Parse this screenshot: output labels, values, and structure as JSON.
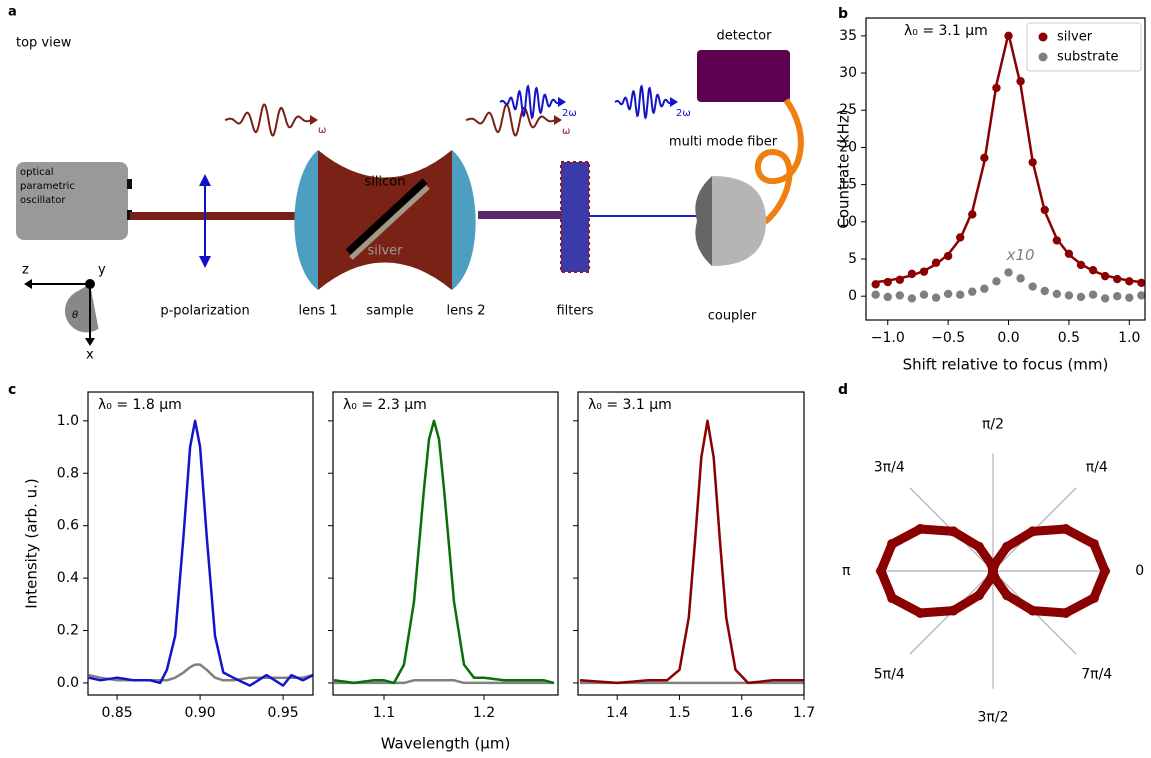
{
  "diagram": {
    "panel": "a",
    "view": "top view",
    "detector": "detector",
    "fiber": "multi mode fiber",
    "opo": [
      "optical",
      "parametric",
      "oscillator"
    ],
    "silicon": "silicon",
    "silver": "silver",
    "polarization": "p-polarization",
    "lens1": "lens 1",
    "sample": "sample",
    "lens2": "lens 2",
    "filters": "filters",
    "coupler": "coupler",
    "axes": {
      "z": "z",
      "y": "y",
      "x": "x",
      "theta": "θ"
    },
    "omega": "ω",
    "two_omega": "2ω"
  },
  "chart_data": [
    {
      "type": "scatter",
      "panel": "b",
      "annotation": "λ₀ = 3.1 μm",
      "scale_label": "x10",
      "xlabel": "Shift relative to focus (mm)",
      "ylabel": "Countrate (kHz)",
      "x": [
        -1.1,
        -1.0,
        -0.9,
        -0.8,
        -0.7,
        -0.6,
        -0.5,
        -0.4,
        -0.3,
        -0.2,
        -0.1,
        0,
        0.1,
        0.2,
        0.3,
        0.4,
        0.5,
        0.6,
        0.7,
        0.8,
        0.9,
        1.0,
        1.1
      ],
      "series": [
        {
          "name": "silver",
          "color": "#8b0000",
          "values": [
            1.6,
            1.9,
            2.2,
            3.0,
            3.3,
            4.5,
            5.4,
            7.9,
            11.0,
            18.6,
            28.0,
            35.0,
            28.9,
            18.0,
            11.6,
            7.5,
            5.7,
            4.2,
            3.5,
            2.7,
            2.3,
            2.0,
            1.8
          ],
          "fit": [
            1.9,
            2.1,
            2.4,
            2.8,
            3.4,
            4.3,
            5.6,
            7.7,
            11.4,
            18.1,
            28.4,
            35.3,
            28.4,
            18.1,
            11.4,
            7.7,
            5.6,
            4.3,
            3.4,
            2.8,
            2.4,
            2.1,
            1.9
          ]
        },
        {
          "name": "substrate",
          "color": "#7f7f7f",
          "values": [
            0.2,
            -0.1,
            0.1,
            -0.3,
            0.2,
            -0.2,
            0.3,
            0.2,
            0.6,
            1.0,
            2.0,
            3.2,
            2.4,
            1.3,
            0.7,
            0.3,
            0.1,
            -0.1,
            0.2,
            -0.3,
            0.0,
            -0.2,
            0.1
          ]
        }
      ],
      "xlim": [
        -1.18,
        1.13
      ],
      "ylim": [
        -3.2,
        37.4
      ],
      "xticks": [
        {
          "value": -1.0,
          "label": "−1.0"
        },
        {
          "value": -0.5,
          "label": "−0.5"
        },
        {
          "value": 0,
          "label": "0.0"
        },
        {
          "value": 0.5,
          "label": "0.5"
        },
        {
          "value": 1.0,
          "label": "1.0"
        }
      ],
      "yticks": [
        0,
        5,
        10,
        15,
        20,
        25,
        30,
        35
      ],
      "legend": "upper right"
    },
    {
      "type": "line",
      "panel": "c",
      "annotation": "λ₀ = 1.8 μm",
      "ylabel": "Intensity (arb. u.)",
      "x": [
        0.833,
        0.84,
        0.85,
        0.86,
        0.87,
        0.876,
        0.88,
        0.885,
        0.89,
        0.894,
        0.897,
        0.9,
        0.904,
        0.909,
        0.914,
        0.92,
        0.93,
        0.94,
        0.95,
        0.955,
        0.962,
        0.968
      ],
      "series": [
        {
          "color": "#1414c8",
          "values": [
            0.02,
            0.01,
            0.02,
            0.01,
            0.01,
            0.0,
            0.05,
            0.18,
            0.56,
            0.9,
            1.0,
            0.9,
            0.56,
            0.18,
            0.04,
            0.02,
            -0.01,
            0.03,
            -0.01,
            0.03,
            0.01,
            0.03
          ]
        },
        {
          "color": "#808080",
          "values": [
            0.03,
            0.02,
            0.01,
            0.01,
            0.01,
            0.01,
            0.01,
            0.02,
            0.04,
            0.06,
            0.07,
            0.07,
            0.05,
            0.02,
            0.01,
            0.01,
            0.02,
            0.02,
            0.02,
            0.02,
            0.02,
            0.03
          ]
        }
      ],
      "xlim": [
        0.8325,
        0.968
      ],
      "ylim": [
        -0.046,
        1.11
      ],
      "xticks": [
        0.85,
        {
          "value": 0.9,
          "label": "0.90"
        },
        0.95
      ],
      "yticks": [
        {
          "value": 0,
          "label": "0.0"
        },
        {
          "value": 0.2,
          "label": "0.2"
        },
        {
          "value": 0.4,
          "label": "0.4"
        },
        {
          "value": 0.6,
          "label": "0.6"
        },
        {
          "value": 0.8,
          "label": "0.8"
        },
        {
          "value": 1.0,
          "label": "1.0"
        }
      ]
    },
    {
      "type": "line",
      "annotation": "λ₀ = 2.3 μm",
      "xlabel": "Wavelength (μm)",
      "sharey": true,
      "x": [
        1.05,
        1.07,
        1.09,
        1.1,
        1.11,
        1.12,
        1.13,
        1.14,
        1.145,
        1.15,
        1.155,
        1.16,
        1.17,
        1.18,
        1.19,
        1.2,
        1.22,
        1.24,
        1.26,
        1.27
      ],
      "series": [
        {
          "color": "#0a6e0a",
          "values": [
            0.01,
            0.0,
            0.01,
            0.01,
            0.0,
            0.07,
            0.31,
            0.74,
            0.93,
            1.0,
            0.93,
            0.74,
            0.31,
            0.07,
            0.02,
            0.02,
            0.01,
            0.01,
            0.01,
            0.0
          ]
        },
        {
          "color": "#808080",
          "values": [
            0,
            0,
            0,
            0,
            0,
            0,
            0.01,
            0.01,
            0.01,
            0.01,
            0.01,
            0.01,
            0.01,
            0,
            0,
            0,
            0,
            0,
            0,
            0
          ]
        }
      ],
      "xlim": [
        1.049,
        1.274
      ],
      "xticks": [
        1.1,
        1.2
      ]
    },
    {
      "type": "line",
      "annotation": "λ₀ = 3.1 μm",
      "sharey": true,
      "x": [
        1.34,
        1.4,
        1.45,
        1.48,
        1.5,
        1.515,
        1.525,
        1.535,
        1.545,
        1.555,
        1.565,
        1.575,
        1.59,
        1.61,
        1.65,
        1.7
      ],
      "series": [
        {
          "color": "#8b0000",
          "values": [
            0.01,
            0.0,
            0.01,
            0.01,
            0.05,
            0.25,
            0.54,
            0.86,
            1.0,
            0.86,
            0.54,
            0.25,
            0.05,
            0.0,
            0.01,
            0.01
          ]
        },
        {
          "color": "#808080",
          "values": [
            0,
            0,
            0,
            0,
            0,
            0,
            0,
            0,
            0,
            0,
            0,
            0,
            0,
            0,
            0,
            0
          ]
        }
      ],
      "xlim": [
        1.337,
        1.7
      ],
      "xticks": [
        1.4,
        1.5,
        1.6,
        1.7
      ]
    },
    {
      "type": "polar",
      "panel": "d",
      "color": "#8b0000",
      "theta": [
        0,
        0.2618,
        0.5236,
        0.7854,
        1.0472,
        1.309,
        1.5708,
        1.8326,
        2.0944,
        2.3562,
        2.618,
        2.8798,
        3.1416,
        3.4034,
        3.6652,
        3.927,
        4.1888,
        4.4506,
        4.7124,
        4.9742,
        5.236,
        5.4978,
        5.7596,
        6.0214
      ],
      "r": [
        1,
        0.933,
        0.75,
        0.5,
        0.25,
        0.067,
        0,
        0.067,
        0.25,
        0.5,
        0.75,
        0.933,
        1,
        0.933,
        0.75,
        0.5,
        0.25,
        0.067,
        0,
        0.067,
        0.25,
        0.5,
        0.75,
        0.933
      ],
      "rlim": [
        0,
        1
      ],
      "thetaticks": [
        0,
        {
          "value": 0.7854,
          "label": "π/4"
        },
        {
          "value": 1.5708,
          "label": "π/2"
        },
        {
          "value": 2.3562,
          "label": "3π/4"
        },
        {
          "value": 3.1416,
          "label": "π"
        },
        {
          "value": 3.927,
          "label": "5π/4"
        },
        {
          "value": 4.7124,
          "label": "3π/2"
        },
        {
          "value": 5.4978,
          "label": "7π/4"
        }
      ]
    }
  ]
}
